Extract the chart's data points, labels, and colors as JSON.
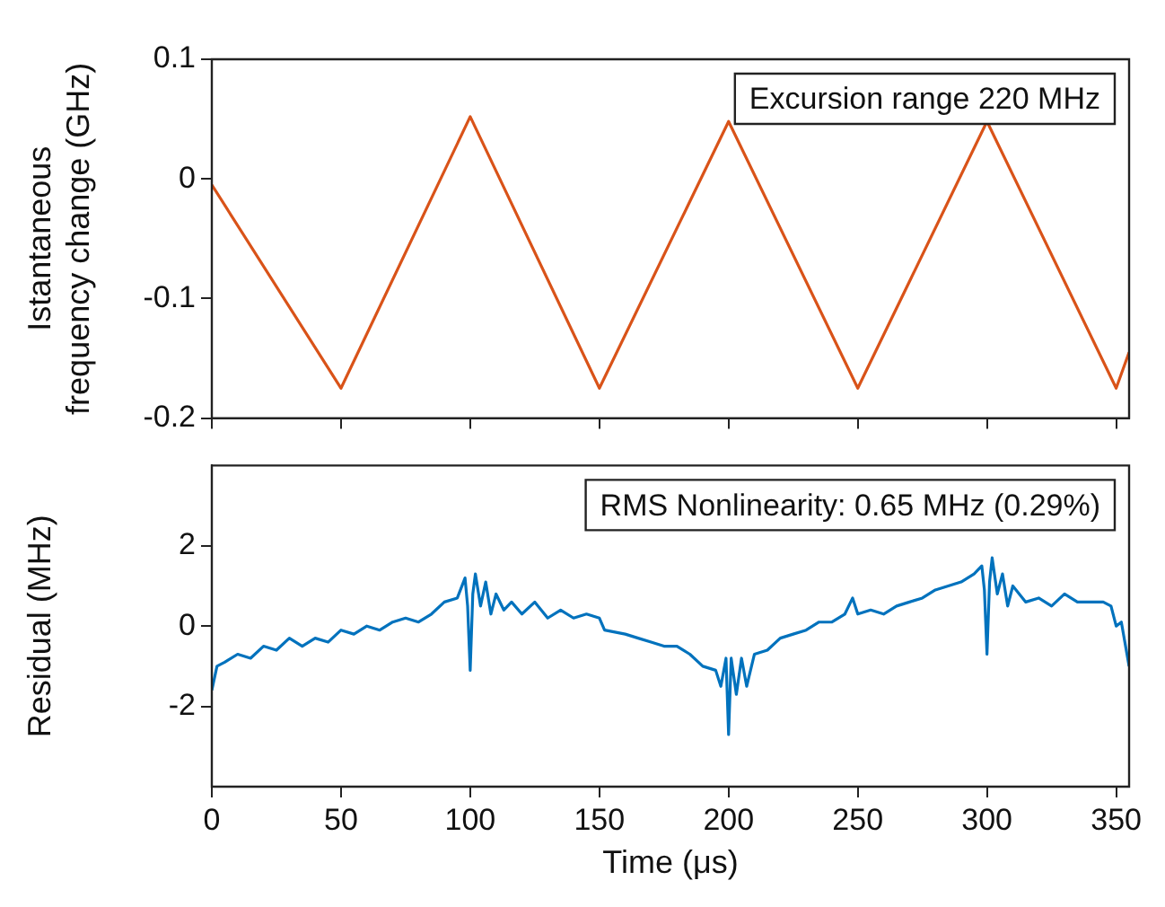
{
  "chart_data": [
    {
      "type": "line",
      "ylabel": "Istantaneous frequency change (GHz)",
      "annotations": [
        "Excursion range 220 MHz"
      ],
      "x": [
        0,
        50,
        100,
        150,
        200,
        250,
        300,
        350,
        355
      ],
      "series": [
        {
          "color": "#d95319",
          "values": [
            -0.005,
            -0.175,
            0.052,
            -0.175,
            0.048,
            -0.175,
            0.048,
            -0.175,
            -0.145
          ]
        }
      ],
      "xlim": [
        0,
        355
      ],
      "xticks": [
        0,
        50,
        100,
        150,
        200,
        250,
        300,
        350
      ],
      "ylim": [
        -0.2,
        0.1
      ],
      "yticks": [
        -0.2,
        -0.1,
        0,
        0.1
      ],
      "tick_labels": "y",
      "grid": false,
      "legend": false,
      "marker": "none",
      "line_style": "solid"
    },
    {
      "type": "line",
      "xlabel": "Time (μs)",
      "ylabel": "Residual (MHz)",
      "annotations": [
        "RMS Nonlinearity: 0.65 MHz (0.29%)"
      ],
      "x": [
        0,
        2,
        5,
        10,
        15,
        20,
        25,
        30,
        35,
        40,
        45,
        50,
        55,
        60,
        65,
        70,
        75,
        80,
        85,
        90,
        95,
        98,
        99,
        100,
        101,
        102,
        104,
        106,
        108,
        110,
        113,
        116,
        120,
        125,
        130,
        135,
        140,
        145,
        150,
        152,
        160,
        165,
        170,
        175,
        180,
        185,
        190,
        195,
        197,
        199,
        200,
        201,
        203,
        205,
        207,
        210,
        215,
        220,
        225,
        230,
        235,
        240,
        245,
        248,
        250,
        255,
        260,
        265,
        270,
        275,
        280,
        285,
        290,
        295,
        298,
        299,
        300,
        301,
        302,
        304,
        306,
        308,
        310,
        315,
        320,
        325,
        330,
        335,
        340,
        345,
        348,
        350,
        352,
        355
      ],
      "series": [
        {
          "color": "#0072bd",
          "values": [
            -1.6,
            -1.0,
            -0.9,
            -0.7,
            -0.8,
            -0.5,
            -0.6,
            -0.3,
            -0.5,
            -0.3,
            -0.4,
            -0.1,
            -0.2,
            0.0,
            -0.1,
            0.1,
            0.2,
            0.1,
            0.3,
            0.6,
            0.7,
            1.2,
            0.5,
            -1.1,
            0.8,
            1.3,
            0.5,
            1.1,
            0.3,
            0.8,
            0.4,
            0.6,
            0.3,
            0.6,
            0.2,
            0.4,
            0.2,
            0.3,
            0.2,
            -0.1,
            -0.2,
            -0.3,
            -0.4,
            -0.5,
            -0.5,
            -0.7,
            -1.0,
            -1.1,
            -1.5,
            -0.8,
            -2.7,
            -0.8,
            -1.7,
            -0.8,
            -1.5,
            -0.7,
            -0.6,
            -0.3,
            -0.2,
            -0.1,
            0.1,
            0.1,
            0.3,
            0.7,
            0.3,
            0.4,
            0.3,
            0.5,
            0.6,
            0.7,
            0.9,
            1.0,
            1.1,
            1.3,
            1.5,
            0.9,
            -0.7,
            1.1,
            1.7,
            0.8,
            1.3,
            0.5,
            1.0,
            0.6,
            0.7,
            0.5,
            0.8,
            0.6,
            0.6,
            0.6,
            0.5,
            0.0,
            0.1,
            -1.0
          ]
        }
      ],
      "xlim": [
        0,
        355
      ],
      "xticks": [
        0,
        50,
        100,
        150,
        200,
        250,
        300,
        350
      ],
      "ylim": [
        -4,
        4
      ],
      "yticks": [
        -2,
        0,
        2
      ],
      "grid": false,
      "legend": false,
      "marker": "none",
      "line_style": "solid"
    }
  ]
}
